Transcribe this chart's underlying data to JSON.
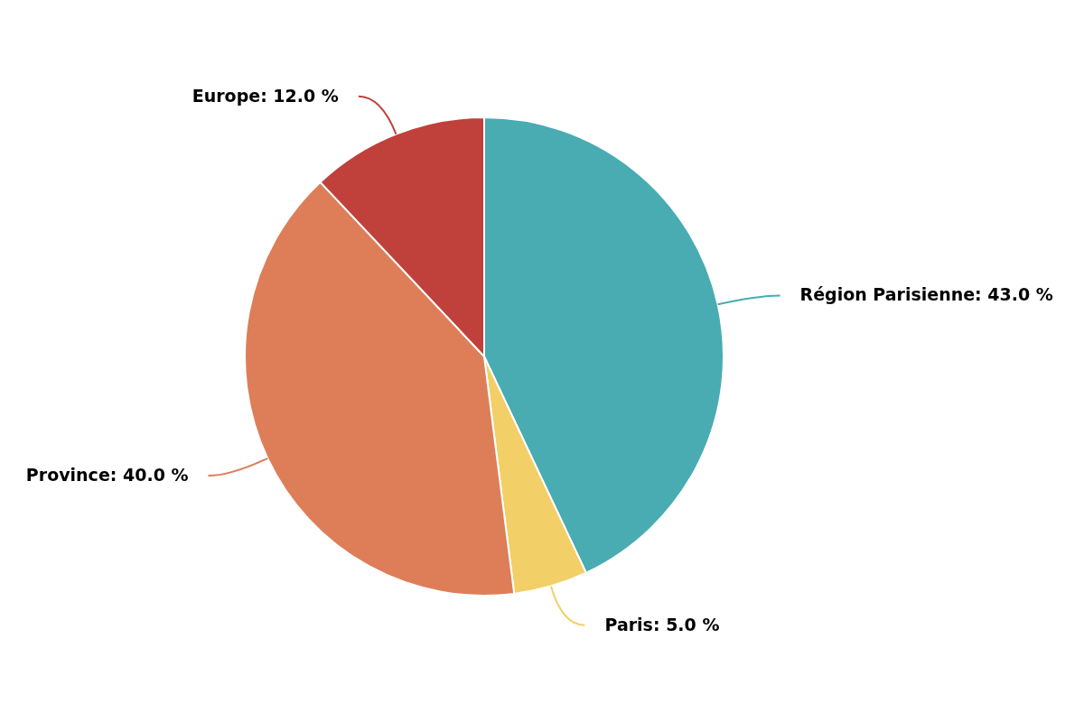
{
  "chart_data": {
    "type": "pie",
    "categories": [
      "Région Parisienne",
      "Paris",
      "Province",
      "Europe"
    ],
    "values": [
      43,
      5,
      40,
      12
    ],
    "value_labels": [
      "43.0 %",
      "5.0 %",
      "40.0 %",
      "12.0 %"
    ],
    "colors": [
      "#48acb2",
      "#f2cf67",
      "#dd7e59",
      "#c0403b"
    ]
  }
}
